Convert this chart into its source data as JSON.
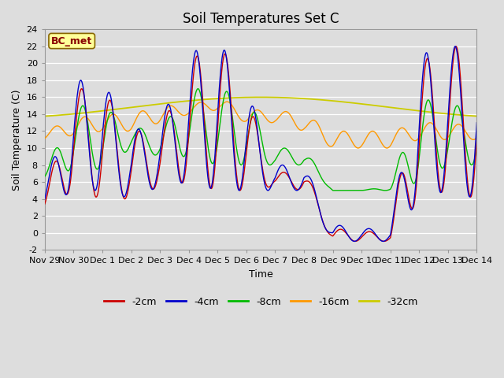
{
  "title": "Soil Temperatures Set C",
  "xlabel": "Time",
  "ylabel": "Soil Temperature (C)",
  "ylim": [
    -2,
    24
  ],
  "yticks": [
    -2,
    0,
    2,
    4,
    6,
    8,
    10,
    12,
    14,
    16,
    18,
    20,
    22,
    24
  ],
  "legend_labels": [
    "-2cm",
    "-4cm",
    "-8cm",
    "-16cm",
    "-32cm"
  ],
  "legend_colors": [
    "#cc0000",
    "#0000cc",
    "#00bb00",
    "#ff9900",
    "#cccc00"
  ],
  "annotation_text": "BC_met",
  "annotation_bg": "#ffff99",
  "annotation_border": "#886600",
  "annotation_text_color": "#880000",
  "background_color": "#dddddd",
  "plot_bg_color": "#dddddd",
  "grid_color": "#ffffff",
  "title_fontsize": 12,
  "axis_fontsize": 9,
  "tick_label_fontsize": 8,
  "x_tick_labels": [
    "Nov 29",
    "Nov 30",
    "Dec 1",
    "Dec 2",
    "Dec 3",
    "Dec 4",
    "Dec 5",
    "Dec 6",
    "Dec 7",
    "Dec 8",
    "Dec 9",
    "Dec 10",
    "Dec 11",
    "Dec 12",
    "Dec 13",
    "Dec 14"
  ],
  "num_days": 16
}
